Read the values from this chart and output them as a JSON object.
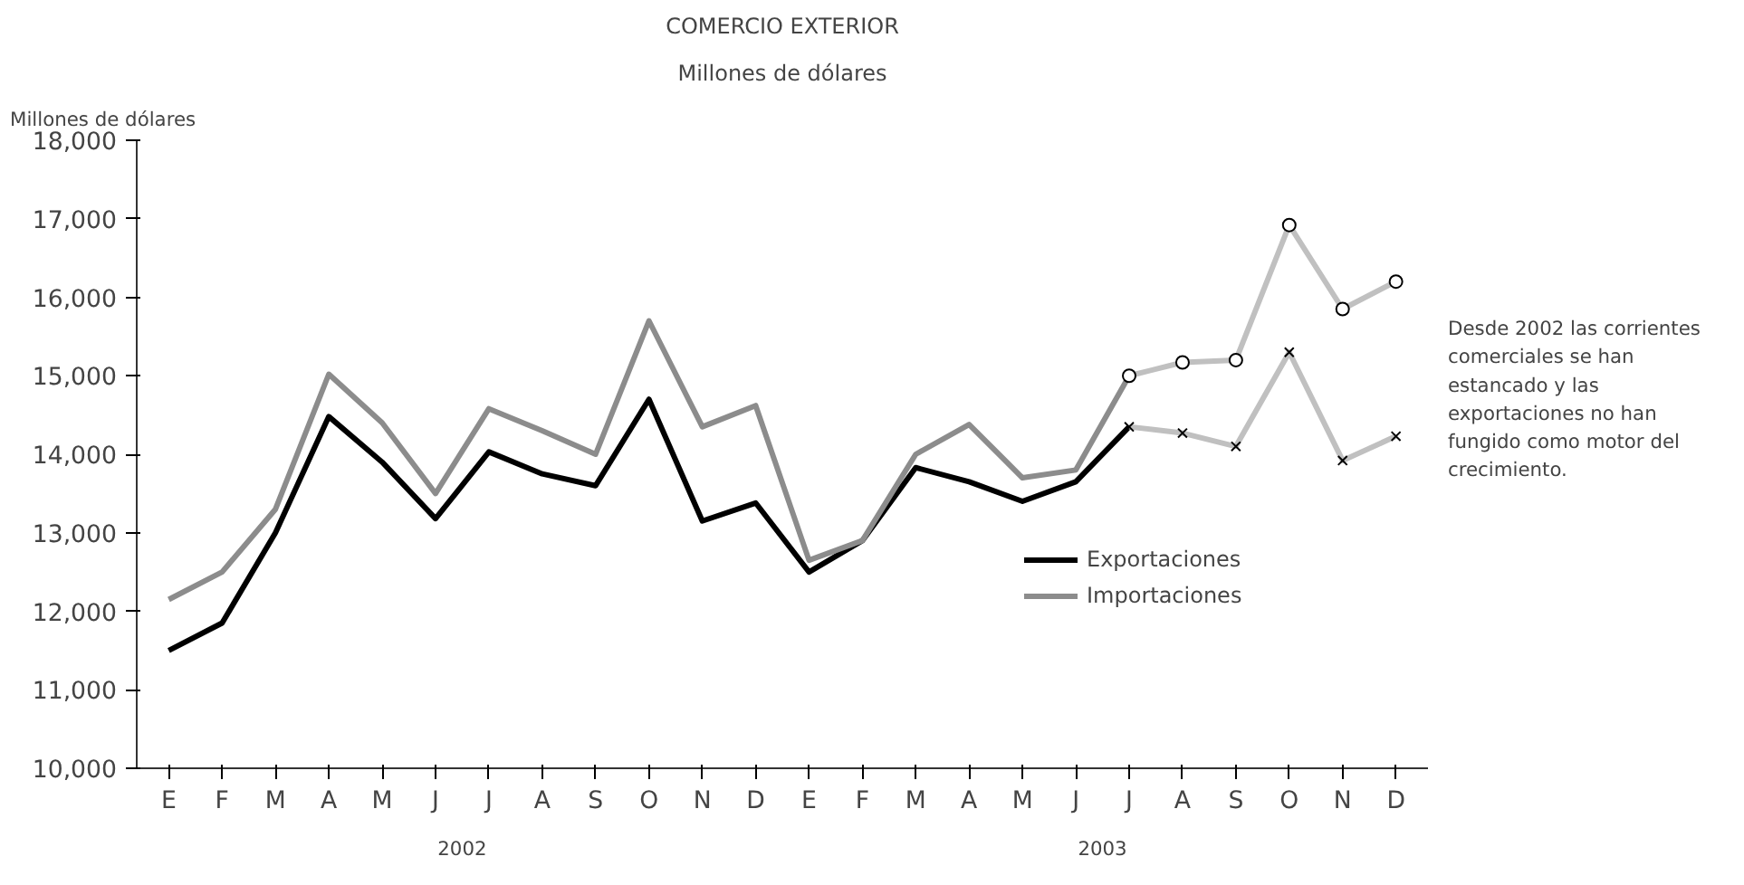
{
  "chart_data": {
    "type": "line",
    "title": "COMERCIO EXTERIOR",
    "subtitle": "Millones de dólares",
    "ylabel": "Millones de dólares",
    "categories": [
      "E",
      "F",
      "M",
      "A",
      "M",
      "J",
      "J",
      "A",
      "S",
      "O",
      "N",
      "D",
      "E",
      "F",
      "M",
      "A",
      "M",
      "J",
      "J",
      "A",
      "S",
      "O",
      "N",
      "D"
    ],
    "series": [
      {
        "name": "Exportaciones",
        "color": "#000000",
        "values": [
          11500,
          11850,
          13000,
          14480,
          13900,
          13180,
          14030,
          13750,
          13600,
          14700,
          13150,
          13380,
          12500,
          12900,
          13830,
          13650,
          13400,
          13650,
          14350,
          null,
          null,
          null,
          null,
          null
        ]
      },
      {
        "name": "Importaciones",
        "color": "#8c8c8c",
        "values": [
          12150,
          12500,
          13300,
          15020,
          14400,
          13500,
          14580,
          14300,
          14000,
          15700,
          14350,
          14620,
          12650,
          12900,
          14000,
          14380,
          13700,
          13800,
          15000,
          null,
          null,
          null,
          null,
          null
        ]
      },
      {
        "color": "#c0c0c0",
        "marker": "cross",
        "values": [
          null,
          null,
          null,
          null,
          null,
          null,
          null,
          null,
          null,
          null,
          null,
          null,
          null,
          null,
          null,
          null,
          null,
          null,
          14350,
          14270,
          14100,
          15300,
          13920,
          14230
        ]
      },
      {
        "color": "#c0c0c0",
        "marker": "circle",
        "values": [
          null,
          null,
          null,
          null,
          null,
          null,
          null,
          null,
          null,
          null,
          null,
          null,
          null,
          null,
          null,
          null,
          null,
          null,
          15000,
          15170,
          15200,
          16920,
          15850,
          16200
        ]
      }
    ],
    "ylim": [
      10000,
      18000
    ],
    "yticks": [
      {
        "value": 10000,
        "label": "10,000"
      },
      {
        "value": 11000,
        "label": "11,000"
      },
      {
        "value": 12000,
        "label": "12,000"
      },
      {
        "value": 13000,
        "label": "13,000"
      },
      {
        "value": 14000,
        "label": "14,000"
      },
      {
        "value": 15000,
        "label": "15,000"
      },
      {
        "value": 16000,
        "label": "16,000"
      },
      {
        "value": 17000,
        "label": "17,000"
      },
      {
        "value": 18000,
        "label": "18,000"
      }
    ],
    "annotations": [
      "2002",
      "2003",
      "Desde 2002 las corrientes\ncomerciales se han\nestancado y las\nexportaciones no han\nfungido como motor del\ncrecimiento."
    ],
    "grid": false,
    "legend": "bottom",
    "marker": "none",
    "line_style": "solid"
  }
}
